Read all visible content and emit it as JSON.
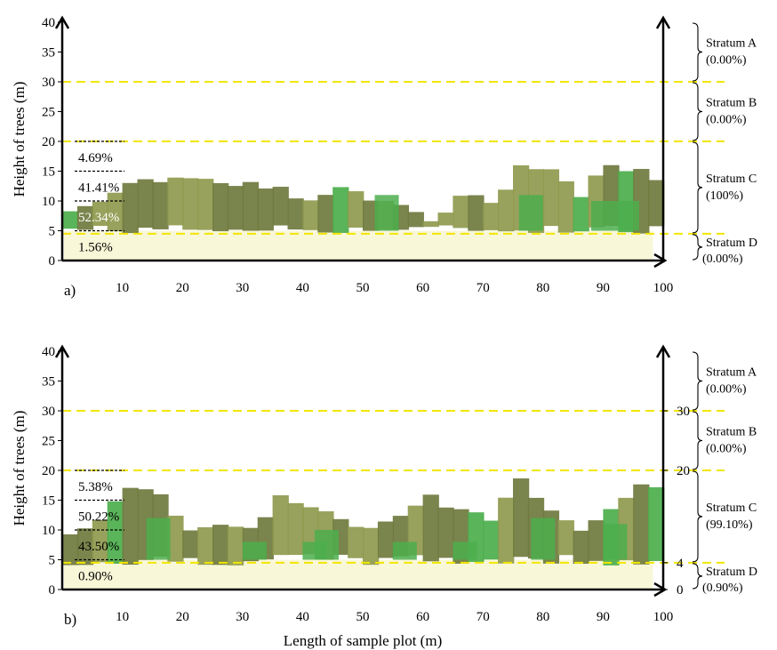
{
  "chart_data": [
    {
      "type": "profile",
      "panel_label": "a)",
      "ylabel": "Height of trees (m)",
      "xlabel": "",
      "ylim": [
        0,
        40
      ],
      "xlim": [
        0,
        100
      ],
      "y_ticks": [
        "0",
        "5",
        "10",
        "15",
        "20",
        "25",
        "30",
        "35",
        "40"
      ],
      "x_ticks": [
        "10",
        "20",
        "30",
        "40",
        "50",
        "60",
        "70",
        "80",
        "90",
        "100"
      ],
      "stratum_lines": [
        30,
        20,
        4.5
      ],
      "right_ticks": [],
      "height_classes": [
        {
          "label": "4.69%",
          "y_from": 15,
          "y_to": 20
        },
        {
          "label": "41.41%",
          "y_from": 10,
          "y_to": 15
        },
        {
          "label": "52.34%",
          "y_from": 5,
          "y_to": 10
        },
        {
          "label": "1.56%",
          "y_from": 0,
          "y_to": 5
        }
      ],
      "strata": [
        {
          "name": "Stratum A",
          "value": "(0.00%)",
          "y_from": 30,
          "y_to": 40
        },
        {
          "name": "Stratum B",
          "value": "(0.00%)",
          "y_from": 20,
          "y_to": 30
        },
        {
          "name": "Stratum C",
          "value": "(100%)",
          "y_from": 4.5,
          "y_to": 20
        },
        {
          "name": "Stratum D",
          "value": "(0.00%)",
          "y_from": 0,
          "y_to": 4.5
        }
      ]
    },
    {
      "type": "profile",
      "panel_label": "b)",
      "ylabel": "Height of trees (m)",
      "xlabel": "Length of sample plot (m)",
      "ylim": [
        0,
        40
      ],
      "xlim": [
        0,
        100
      ],
      "y_ticks": [
        "0",
        "5",
        "10",
        "15",
        "20",
        "25",
        "30",
        "35",
        "40"
      ],
      "x_ticks": [
        "10",
        "20",
        "30",
        "40",
        "50",
        "60",
        "70",
        "80",
        "90",
        "100"
      ],
      "stratum_lines": [
        30,
        20,
        4.5
      ],
      "right_ticks": [
        "30",
        "20",
        "4",
        "0"
      ],
      "height_classes": [
        {
          "label": "5.38%",
          "y_from": 15,
          "y_to": 20
        },
        {
          "label": "50.22%",
          "y_from": 10,
          "y_to": 15
        },
        {
          "label": "43.50%",
          "y_from": 5,
          "y_to": 10
        },
        {
          "label": "0.90%",
          "y_from": 0,
          "y_to": 5
        }
      ],
      "strata": [
        {
          "name": "Stratum A",
          "value": "(0.00%)",
          "y_from": 30,
          "y_to": 40
        },
        {
          "name": "Stratum B",
          "value": "(0.00%)",
          "y_from": 20,
          "y_to": 30
        },
        {
          "name": "Stratum C",
          "value": "(99.10%)",
          "y_from": 4.5,
          "y_to": 20
        },
        {
          "name": "Stratum D",
          "value": "(0.90%)",
          "y_from": 0,
          "y_to": 4.5
        }
      ]
    }
  ],
  "colors": {
    "stratum_line": "#f2e600",
    "axis": "#000000",
    "canopy_dark": "#6f7a3e",
    "canopy_mid": "#8f9a4e",
    "canopy_bright": "#4cae4c",
    "understory": "#f3f0b8"
  }
}
